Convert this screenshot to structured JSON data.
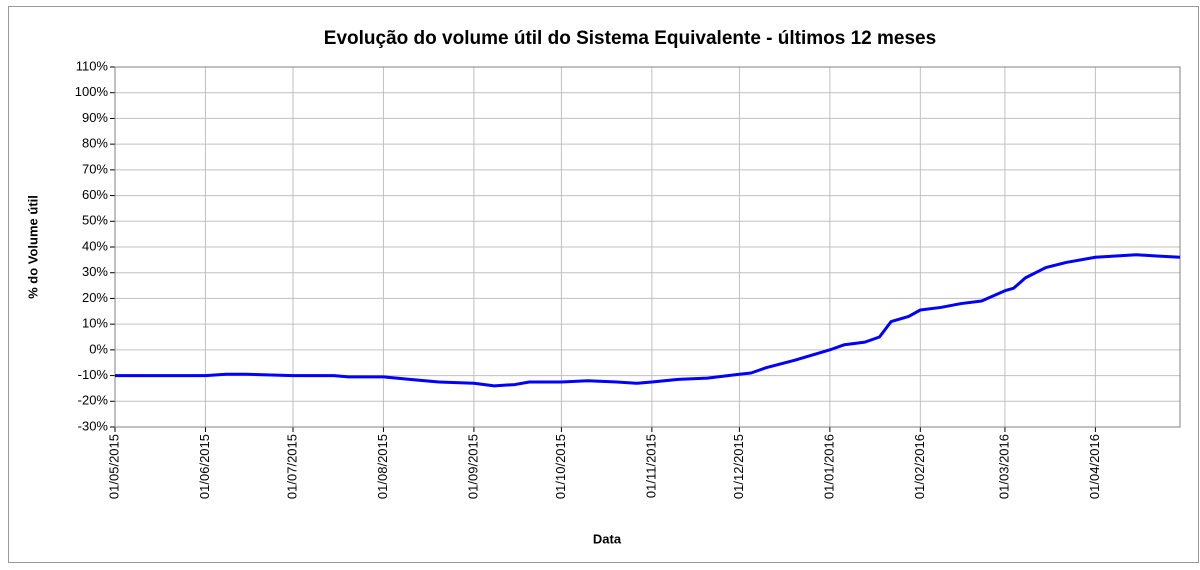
{
  "chart_data": {
    "type": "line",
    "title": "Evolução do volume útil do Sistema Equivalente - últimos 12 meses",
    "x_label": "Data",
    "y_label": "% do Volume útil",
    "x": [
      "01/05/2015",
      "01/06/2015",
      "08/06/2015",
      "15/06/2015",
      "01/07/2015",
      "15/07/2015",
      "20/07/2015",
      "01/08/2015",
      "10/08/2015",
      "20/08/2015",
      "01/09/2015",
      "08/09/2015",
      "15/09/2015",
      "20/09/2015",
      "01/10/2015",
      "10/10/2015",
      "20/10/2015",
      "27/10/2015",
      "01/11/2015",
      "10/11/2015",
      "20/11/2015",
      "01/12/2015",
      "05/12/2015",
      "10/12/2015",
      "20/12/2015",
      "01/01/2016",
      "06/01/2016",
      "13/01/2016",
      "18/01/2016",
      "22/01/2016",
      "28/01/2016",
      "01/02/2016",
      "08/02/2016",
      "15/02/2016",
      "22/02/2016",
      "01/03/2016",
      "04/03/2016",
      "08/03/2016",
      "15/03/2016",
      "22/03/2016",
      "01/04/2016",
      "08/04/2016",
      "15/04/2016",
      "22/04/2016",
      "30/04/2016"
    ],
    "values": [
      -10,
      -10,
      -9.5,
      -9.5,
      -10,
      -10,
      -10.5,
      -10.5,
      -11.5,
      -12.5,
      -13,
      -14,
      -13.5,
      -12.5,
      -12.5,
      -12,
      -12.5,
      -13,
      -12.5,
      -11.5,
      -11,
      -9.5,
      -9,
      -7,
      -4,
      0,
      2,
      3,
      5,
      11,
      13,
      15.5,
      16.5,
      18,
      19,
      23,
      24,
      28,
      32,
      34,
      36,
      36.5,
      37,
      36.5,
      36
    ],
    "color": "#0000ff",
    "xlim": [
      "01/05/2015",
      "30/04/2016"
    ],
    "xticks": [
      "01/05/2015",
      "01/06/2015",
      "01/07/2015",
      "01/08/2015",
      "01/09/2015",
      "01/10/2015",
      "01/11/2015",
      "01/12/2015",
      "01/01/2016",
      "01/02/2016",
      "01/03/2016",
      "01/04/2016"
    ],
    "ylim": [
      -30,
      110
    ],
    "yticks": [
      {
        "value": -30,
        "label": "-30%"
      },
      {
        "value": -20,
        "label": "-20%"
      },
      {
        "value": -10,
        "label": "-10%"
      },
      {
        "value": 0,
        "label": "0%"
      },
      {
        "value": 10,
        "label": "10%"
      },
      {
        "value": 20,
        "label": "20%"
      },
      {
        "value": 30,
        "label": "30%"
      },
      {
        "value": 40,
        "label": "40%"
      },
      {
        "value": 50,
        "label": "50%"
      },
      {
        "value": 60,
        "label": "60%"
      },
      {
        "value": 70,
        "label": "70%"
      },
      {
        "value": 80,
        "label": "80%"
      },
      {
        "value": 90,
        "label": "90%"
      },
      {
        "value": 100,
        "label": "100%"
      },
      {
        "value": 110,
        "label": "110%"
      }
    ],
    "grid": true
  }
}
